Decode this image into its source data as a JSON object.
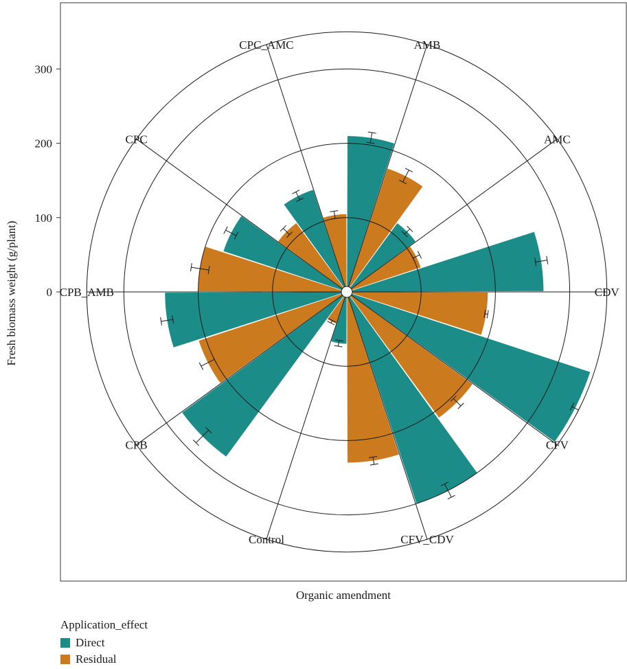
{
  "chart_data": {
    "type": "bar",
    "polar": true,
    "xlabel": "Organic amendment",
    "ylabel": "Fresh biomass weight (g/plant)",
    "y_ticks": [
      0,
      100,
      200,
      300
    ],
    "ylim": [
      0,
      350
    ],
    "categories": [
      "CDV",
      "CFV",
      "CFV_CDV",
      "Control",
      "CPB",
      "CPB_AMB",
      "CPC",
      "CPC_AMC",
      "AMB",
      "AMC"
    ],
    "series": [
      {
        "name": "Direct",
        "color": "#1b8c88",
        "values": [
          265,
          345,
          300,
          70,
          275,
          245,
          175,
          145,
          210,
          115
        ],
        "errors": [
          8,
          5,
          10,
          4,
          12,
          8,
          8,
          6,
          7,
          5
        ]
      },
      {
        "name": "Residual",
        "color": "#cc7a1e",
        "values": [
          190,
          210,
          230,
          45,
          210,
          200,
          115,
          105,
          175,
          105
        ],
        "errors": [
          2,
          7,
          5,
          2,
          10,
          12,
          6,
          5,
          9,
          5
        ]
      }
    ],
    "legend": {
      "title": "Application_effect",
      "position": "bottom-left"
    }
  }
}
